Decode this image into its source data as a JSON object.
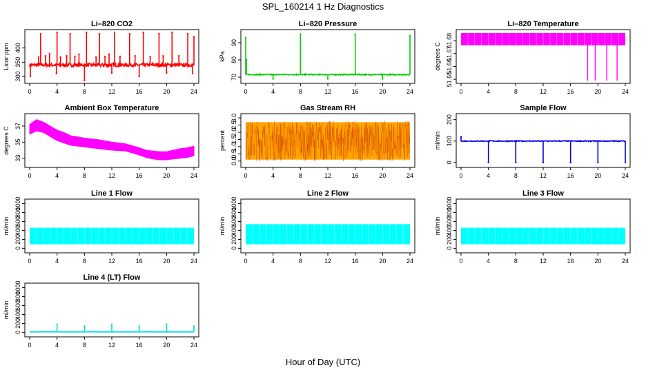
{
  "figure": {
    "title": "SPL_160214  1 Hz Diagnostics",
    "xlabel": "Hour of Day (UTC)"
  },
  "chart_data": [
    {
      "type": "line",
      "title": "Li–820 CO2",
      "ylabel": "Licor ppm",
      "color": "#ff0000",
      "xlim": [
        0,
        24
      ],
      "ylim": [
        285,
        455
      ],
      "xticks": [
        "0",
        "4",
        "8",
        "12",
        "16",
        "20",
        "24"
      ],
      "yticks": [
        "300",
        "350",
        "400"
      ],
      "baseline": 340,
      "noise": 6,
      "spikes": [
        {
          "x": 0.1,
          "y": 300
        },
        {
          "x": 1.3,
          "y": 368
        },
        {
          "x": 1.6,
          "y": 450
        },
        {
          "x": 2.3,
          "y": 372
        },
        {
          "x": 2.9,
          "y": 380
        },
        {
          "x": 3.9,
          "y": 310
        },
        {
          "x": 4.0,
          "y": 455
        },
        {
          "x": 4.5,
          "y": 368
        },
        {
          "x": 5.4,
          "y": 372
        },
        {
          "x": 5.9,
          "y": 450
        },
        {
          "x": 6.6,
          "y": 370
        },
        {
          "x": 7.2,
          "y": 378
        },
        {
          "x": 8.0,
          "y": 285
        },
        {
          "x": 8.3,
          "y": 455
        },
        {
          "x": 9.7,
          "y": 368
        },
        {
          "x": 10.2,
          "y": 450
        },
        {
          "x": 11.0,
          "y": 370
        },
        {
          "x": 11.6,
          "y": 378
        },
        {
          "x": 12.0,
          "y": 312
        },
        {
          "x": 12.4,
          "y": 455
        },
        {
          "x": 13.2,
          "y": 370
        },
        {
          "x": 14.6,
          "y": 450
        },
        {
          "x": 15.4,
          "y": 372
        },
        {
          "x": 16.0,
          "y": 300
        },
        {
          "x": 16.6,
          "y": 455
        },
        {
          "x": 17.6,
          "y": 370
        },
        {
          "x": 18.9,
          "y": 450
        },
        {
          "x": 19.5,
          "y": 372
        },
        {
          "x": 20.0,
          "y": 312
        },
        {
          "x": 20.8,
          "y": 455
        },
        {
          "x": 21.8,
          "y": 372
        },
        {
          "x": 23.1,
          "y": 450
        },
        {
          "x": 23.8,
          "y": 310
        },
        {
          "x": 24.0,
          "y": 440
        }
      ]
    },
    {
      "type": "line",
      "title": "Li–820 Pressure",
      "ylabel": "kPa",
      "color": "#00cc00",
      "xlim": [
        0,
        24
      ],
      "ylim": [
        68,
        96
      ],
      "xticks": [
        "0",
        "4",
        "8",
        "12",
        "16",
        "20",
        "24"
      ],
      "yticks": [
        "70",
        "80",
        "90"
      ],
      "baseline": 71.5,
      "noise": 0.3,
      "spikes": [
        {
          "x": 0.0,
          "y": 93
        },
        {
          "x": 0.1,
          "y": 80
        },
        {
          "x": 4.0,
          "y": 69
        },
        {
          "x": 8.0,
          "y": 95
        },
        {
          "x": 12.0,
          "y": 69
        },
        {
          "x": 16.0,
          "y": 95
        },
        {
          "x": 20.0,
          "y": 69
        },
        {
          "x": 24.0,
          "y": 94
        }
      ]
    },
    {
      "type": "area",
      "title": "Li–820 Temperature",
      "ylabel": "degrees C",
      "color": "#ff00ff",
      "xlim": [
        0,
        24
      ],
      "ylim": [
        51.649,
        51.6865
      ],
      "xticks": [
        "0",
        "4",
        "8",
        "12",
        "16",
        "20",
        "24"
      ],
      "yticks": [
        "51.65",
        "51.66",
        "51.67",
        "51.68"
      ],
      "band": [
        51.6765,
        51.686
      ],
      "spikes": [
        {
          "x": 18.5,
          "y": 51.649
        },
        {
          "x": 19.6,
          "y": 51.649
        },
        {
          "x": 21.3,
          "y": 51.649
        },
        {
          "x": 22.8,
          "y": 51.649
        }
      ]
    },
    {
      "type": "area",
      "title": "Ambient Box Temperature",
      "ylabel": "degrees C",
      "color": "#ff00ff",
      "xlim": [
        0,
        24
      ],
      "ylim": [
        32.2,
        38.2
      ],
      "xticks": [
        "0",
        "4",
        "8",
        "12",
        "16",
        "20",
        "24"
      ],
      "yticks": [
        "33",
        "35",
        "37"
      ],
      "x": [
        0,
        1,
        2,
        3,
        4,
        5,
        6,
        8,
        10,
        12,
        14,
        16,
        17,
        18,
        19,
        20,
        21,
        22,
        23,
        24
      ],
      "low": [
        36.0,
        36.4,
        36.2,
        35.7,
        35.2,
        34.9,
        34.6,
        34.4,
        34.2,
        34.0,
        33.9,
        33.4,
        33.1,
        32.9,
        32.8,
        32.8,
        32.9,
        33.0,
        33.1,
        33.3
      ],
      "high": [
        37.2,
        37.8,
        37.5,
        37.0,
        36.5,
        36.2,
        35.8,
        35.5,
        35.3,
        35.0,
        34.8,
        34.3,
        34.0,
        33.9,
        33.8,
        33.8,
        34.0,
        34.2,
        34.3,
        34.5
      ]
    },
    {
      "type": "area",
      "title": "Gas Stream RH",
      "ylabel": "percent",
      "color": "#ffa500",
      "dot_color": "#cc3300",
      "xlim": [
        0,
        24
      ],
      "ylim": [
        -0.25,
        3.1
      ],
      "xticks": [
        "0",
        "4",
        "8",
        "12",
        "16",
        "20",
        "24"
      ],
      "yticks": [
        "0.0",
        "0.5",
        "1.0",
        "1.5",
        "2.0",
        "2.5",
        "3.0"
      ],
      "band": [
        0.1,
        2.7
      ],
      "noise": 0.25
    },
    {
      "type": "line",
      "title": "Sample Flow",
      "ylabel": "ml/min",
      "color": "#0000dd",
      "xlim": [
        0,
        24
      ],
      "ylim": [
        -10,
        215
      ],
      "xticks": [
        "0",
        "4",
        "8",
        "12",
        "16",
        "20",
        "24"
      ],
      "yticks": [
        "0",
        "100",
        "200"
      ],
      "baseline": 100,
      "noise": 2,
      "spikes": [
        {
          "x": 0.0,
          "y": 120
        },
        {
          "x": 4.0,
          "y": 0
        },
        {
          "x": 8.0,
          "y": 0
        },
        {
          "x": 12.0,
          "y": 0
        },
        {
          "x": 16.0,
          "y": 0
        },
        {
          "x": 20.0,
          "y": 0
        },
        {
          "x": 24.0,
          "y": 0
        }
      ]
    },
    {
      "type": "area",
      "title": "Line 1 Flow",
      "ylabel": "ml/min",
      "color": "#00ffff",
      "xlim": [
        0,
        24
      ],
      "ylim": [
        -40,
        1040
      ],
      "xticks": [
        "0",
        "4",
        "8",
        "12",
        "16",
        "20",
        "24"
      ],
      "yticks": [
        "0",
        "200",
        "400",
        "600",
        "800",
        "1000"
      ],
      "band": [
        90,
        460
      ]
    },
    {
      "type": "area",
      "title": "Line 2 Flow",
      "ylabel": "ml/min",
      "color": "#00ffff",
      "xlim": [
        0,
        24
      ],
      "ylim": [
        -40,
        1040
      ],
      "xticks": [
        "0",
        "4",
        "8",
        "12",
        "16",
        "20",
        "24"
      ],
      "yticks": [
        "0",
        "200",
        "400",
        "600",
        "800",
        "1000"
      ],
      "band": [
        90,
        540
      ]
    },
    {
      "type": "area",
      "title": "Line 3 Flow",
      "ylabel": "ml/min",
      "color": "#00ffff",
      "xlim": [
        0,
        24
      ],
      "ylim": [
        -40,
        1040
      ],
      "xticks": [
        "0",
        "4",
        "8",
        "12",
        "16",
        "20",
        "24"
      ],
      "yticks": [
        "0",
        "200",
        "400",
        "600",
        "800",
        "1000"
      ],
      "band": [
        90,
        460
      ]
    },
    {
      "type": "line",
      "title": "Line 4 (LT) Flow",
      "ylabel": "ml/min",
      "color": "#00dddd",
      "xlim": [
        0,
        24
      ],
      "ylim": [
        -40,
        1040
      ],
      "xticks": [
        "0",
        "4",
        "8",
        "12",
        "16",
        "20",
        "24"
      ],
      "yticks": [
        "0",
        "200",
        "400",
        "600",
        "800",
        "1000"
      ],
      "baseline": 10,
      "noise": 3,
      "spikes": [
        {
          "x": 4.0,
          "y": 180
        },
        {
          "x": 8.0,
          "y": 140
        },
        {
          "x": 12.0,
          "y": 180
        },
        {
          "x": 16.0,
          "y": 140
        },
        {
          "x": 20.0,
          "y": 180
        },
        {
          "x": 24.0,
          "y": 140
        }
      ]
    }
  ]
}
